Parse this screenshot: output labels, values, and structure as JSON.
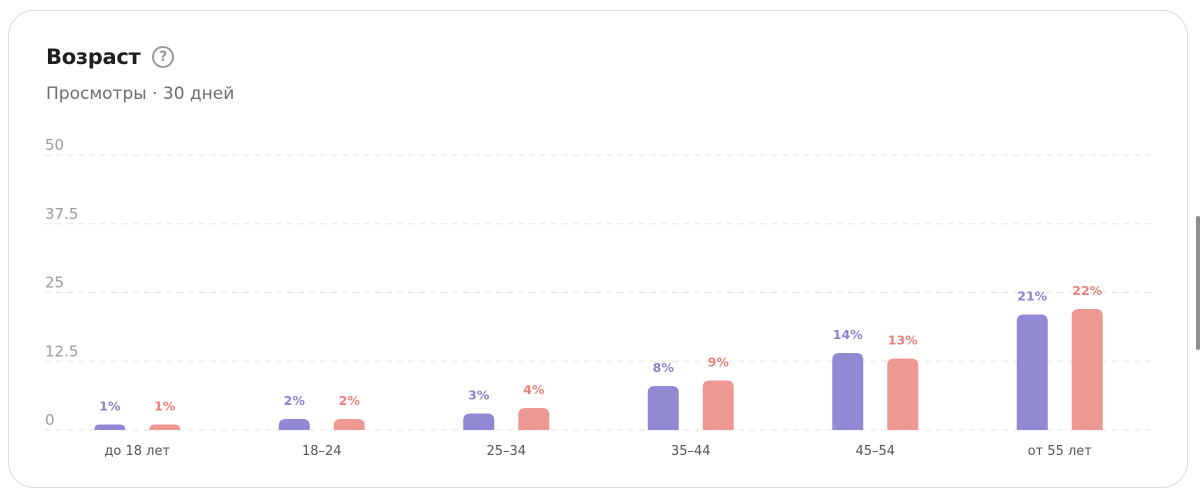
{
  "card": {
    "title": "Возраст",
    "help_icon": "question-circle-icon",
    "subtitle": "Просмотры · 30 дней"
  },
  "colors": {
    "series_1": "#9189d4",
    "series_2": "#ee9893",
    "series_1_label": "#8b83cc",
    "series_2_label": "#e8817b",
    "axis_text": "#9b9b9b",
    "gridline": "#e6e6e6",
    "category_text": "#555555"
  },
  "chart_data": {
    "type": "bar",
    "title": "Возраст",
    "subtitle": "Просмотры · 30 дней",
    "categories": [
      "до 18 лет",
      "18–24",
      "25–34",
      "35–44",
      "45–54",
      "от 55 лет"
    ],
    "series": [
      {
        "values": [
          1,
          2,
          3,
          8,
          14,
          21
        ],
        "labels": [
          "1%",
          "2%",
          "3%",
          "8%",
          "14%",
          "21%"
        ]
      },
      {
        "values": [
          1,
          2,
          4,
          9,
          13,
          22
        ],
        "labels": [
          "1%",
          "2%",
          "4%",
          "9%",
          "13%",
          "22%"
        ]
      }
    ],
    "y_ticks": [
      "0",
      "12.5",
      "25",
      "37.5",
      "50"
    ],
    "ylim": [
      0,
      50
    ],
    "grid": true,
    "xlabel": "",
    "ylabel": ""
  }
}
